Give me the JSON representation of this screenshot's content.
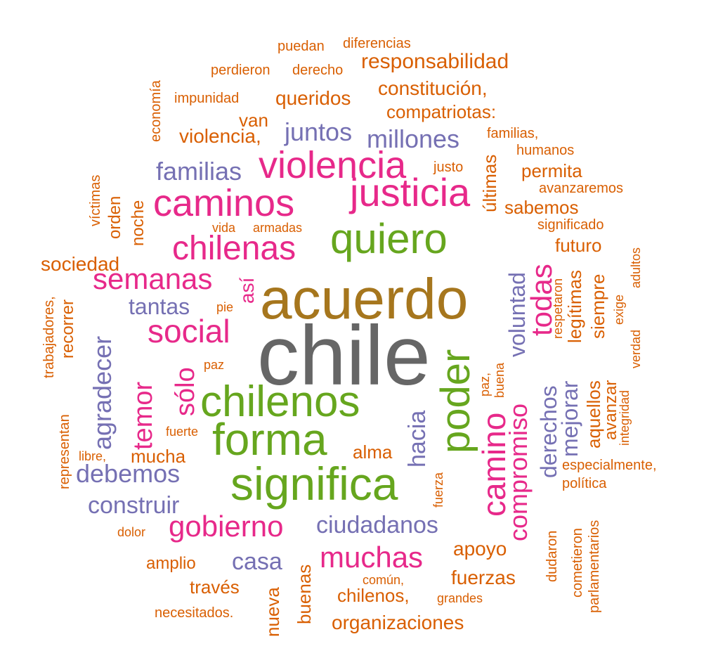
{
  "colors": {
    "orange": "#d95f02",
    "purple": "#7570b3",
    "pink": "#e7298a",
    "green": "#66a61e",
    "gold": "#a6761d",
    "gray": "#666666"
  },
  "words": [
    {
      "text": "chile",
      "color": "gray"
    },
    {
      "text": "acuerdo",
      "color": "gold"
    },
    {
      "text": "significa",
      "color": "green"
    },
    {
      "text": "forma",
      "color": "green"
    },
    {
      "text": "chilenos",
      "color": "green"
    },
    {
      "text": "quiero",
      "color": "green"
    },
    {
      "text": "poder",
      "color": "green"
    },
    {
      "text": "justicia",
      "color": "pink"
    },
    {
      "text": "violencia",
      "color": "pink"
    },
    {
      "text": "caminos",
      "color": "pink"
    },
    {
      "text": "chilenas",
      "color": "pink"
    },
    {
      "text": "social",
      "color": "pink"
    },
    {
      "text": "semanas",
      "color": "pink"
    },
    {
      "text": "muchas",
      "color": "pink"
    },
    {
      "text": "gobierno",
      "color": "pink"
    },
    {
      "text": "camino",
      "color": "pink"
    },
    {
      "text": "todas",
      "color": "pink"
    },
    {
      "text": "temor",
      "color": "pink"
    },
    {
      "text": "sólo",
      "color": "pink"
    },
    {
      "text": "compromiso",
      "color": "pink"
    },
    {
      "text": "así",
      "color": "pink"
    },
    {
      "text": "familias",
      "color": "purple"
    },
    {
      "text": "juntos",
      "color": "purple"
    },
    {
      "text": "millones",
      "color": "purple"
    },
    {
      "text": "tantas",
      "color": "purple"
    },
    {
      "text": "agradecer",
      "color": "purple"
    },
    {
      "text": "debemos",
      "color": "purple"
    },
    {
      "text": "construir",
      "color": "purple"
    },
    {
      "text": "ciudadanos",
      "color": "purple"
    },
    {
      "text": "casa",
      "color": "purple"
    },
    {
      "text": "hacia",
      "color": "purple"
    },
    {
      "text": "voluntad",
      "color": "purple"
    },
    {
      "text": "derechos",
      "color": "purple"
    },
    {
      "text": "mejorar",
      "color": "purple"
    },
    {
      "text": "puedan",
      "color": "orange"
    },
    {
      "text": "diferencias",
      "color": "orange"
    },
    {
      "text": "perdieron",
      "color": "orange"
    },
    {
      "text": "derecho",
      "color": "orange"
    },
    {
      "text": "responsabilidad",
      "color": "orange"
    },
    {
      "text": "constitución,",
      "color": "orange"
    },
    {
      "text": "impunidad",
      "color": "orange"
    },
    {
      "text": "queridos",
      "color": "orange"
    },
    {
      "text": "compatriotas:",
      "color": "orange"
    },
    {
      "text": "van",
      "color": "orange"
    },
    {
      "text": "violencia,",
      "color": "orange"
    },
    {
      "text": "familias,",
      "color": "orange"
    },
    {
      "text": "humanos",
      "color": "orange"
    },
    {
      "text": "justo",
      "color": "orange"
    },
    {
      "text": "permita",
      "color": "orange"
    },
    {
      "text": "avanzaremos",
      "color": "orange"
    },
    {
      "text": "sabemos",
      "color": "orange"
    },
    {
      "text": "significado",
      "color": "orange"
    },
    {
      "text": "futuro",
      "color": "orange"
    },
    {
      "text": "vida",
      "color": "orange"
    },
    {
      "text": "armadas",
      "color": "orange"
    },
    {
      "text": "sociedad",
      "color": "orange"
    },
    {
      "text": "pie",
      "color": "orange"
    },
    {
      "text": "paz",
      "color": "orange"
    },
    {
      "text": "fuerte",
      "color": "orange"
    },
    {
      "text": "mucha",
      "color": "orange"
    },
    {
      "text": "libre,",
      "color": "orange"
    },
    {
      "text": "alma",
      "color": "orange"
    },
    {
      "text": "dolor",
      "color": "orange"
    },
    {
      "text": "amplio",
      "color": "orange"
    },
    {
      "text": "través",
      "color": "orange"
    },
    {
      "text": "necesitados.",
      "color": "orange"
    },
    {
      "text": "común,",
      "color": "orange"
    },
    {
      "text": "chilenos,",
      "color": "orange"
    },
    {
      "text": "grandes",
      "color": "orange"
    },
    {
      "text": "organizaciones",
      "color": "orange"
    },
    {
      "text": "apoyo",
      "color": "orange"
    },
    {
      "text": "fuerzas",
      "color": "orange"
    },
    {
      "text": "especialmente,",
      "color": "orange"
    },
    {
      "text": "política",
      "color": "orange"
    },
    {
      "text": "economía",
      "color": "orange"
    },
    {
      "text": "víctimas",
      "color": "orange"
    },
    {
      "text": "orden",
      "color": "orange"
    },
    {
      "text": "noche",
      "color": "orange"
    },
    {
      "text": "trabajadores,",
      "color": "orange"
    },
    {
      "text": "recorrer",
      "color": "orange"
    },
    {
      "text": "representan",
      "color": "orange"
    },
    {
      "text": "últimas",
      "color": "orange"
    },
    {
      "text": "legítimas",
      "color": "orange"
    },
    {
      "text": "siempre",
      "color": "orange"
    },
    {
      "text": "respetaron",
      "color": "orange"
    },
    {
      "text": "exige",
      "color": "orange"
    },
    {
      "text": "adultos",
      "color": "orange"
    },
    {
      "text": "verdad",
      "color": "orange"
    },
    {
      "text": "integridad",
      "color": "orange"
    },
    {
      "text": "avanzar",
      "color": "orange"
    },
    {
      "text": "aquellos",
      "color": "orange"
    },
    {
      "text": "buena",
      "color": "orange"
    },
    {
      "text": "paz,",
      "color": "orange"
    },
    {
      "text": "fuerza",
      "color": "orange"
    },
    {
      "text": "nueva",
      "color": "orange"
    },
    {
      "text": "buenas",
      "color": "orange"
    },
    {
      "text": "dudaron",
      "color": "orange"
    },
    {
      "text": "cometieron",
      "color": "orange"
    },
    {
      "text": "parlamentarios",
      "color": "orange"
    }
  ]
}
